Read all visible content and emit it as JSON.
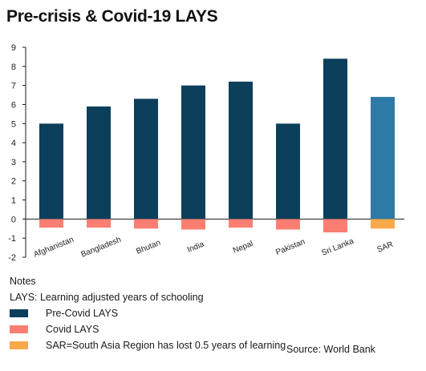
{
  "chart_data": {
    "type": "bar",
    "title": "Pre-crisis & Covid-19 LAYS",
    "categories": [
      "Afghanistan",
      "Bangladesh",
      "Bhutan",
      "India",
      "Nepal",
      "Pakistan",
      "Sri Lanka",
      "SAR"
    ],
    "series": [
      {
        "name": "Pre-Covid LAYS",
        "values": [
          5.0,
          5.9,
          6.3,
          7.0,
          7.2,
          5.0,
          8.4,
          6.4
        ]
      },
      {
        "name": "Covid LAYS",
        "values": [
          -0.45,
          -0.45,
          -0.5,
          -0.55,
          -0.45,
          -0.55,
          -0.7,
          -0.5
        ]
      }
    ],
    "ylim": [
      -2,
      9
    ],
    "yticks": [
      -2,
      -1,
      0,
      1,
      2,
      3,
      4,
      5,
      6,
      7,
      8,
      9
    ],
    "ytick_labels": [
      "-2",
      "-1",
      "0",
      "1",
      "2",
      "3",
      "4",
      "5",
      "6",
      "7",
      "8",
      "9"
    ],
    "grid": false,
    "colors": {
      "pre_covid": "#0b3f5c",
      "covid": "#fa7f72",
      "sar_pre_covid": "#2d7aa6",
      "sar_covid": "#f9a94a",
      "axis": "#1a1a1a"
    }
  },
  "notes": {
    "heading": "Notes",
    "definition": "LAYS: Learning adjusted years of schooling",
    "legend": [
      {
        "label": "Pre-Covid LAYS",
        "color": "#0b3f5c"
      },
      {
        "label": "Covid LAYS",
        "color": "#fa7f72"
      },
      {
        "label": "SAR=South Asia Region has lost 0.5 years of learning",
        "color": "#f9a94a"
      }
    ],
    "source": "Source: World Bank"
  }
}
